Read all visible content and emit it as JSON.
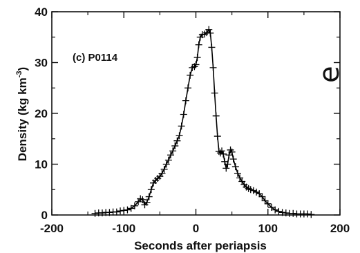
{
  "chart_data": {
    "type": "line",
    "title": "",
    "xlabel": "Seconds after periapsis",
    "ylabel": "Density (kg km",
    "ylabel_superscript": "-3",
    "ylabel_close": ")",
    "annotation": "(c) P0114",
    "edge_glyph": "e",
    "xlim": [
      -200,
      200
    ],
    "ylim": [
      0,
      40
    ],
    "x_ticks": [
      -200,
      -100,
      0,
      100,
      200
    ],
    "y_ticks": [
      0,
      10,
      20,
      30,
      40
    ],
    "grid": false,
    "legend": "none",
    "series": [
      {
        "marker": "plus",
        "color": "#000000",
        "points": [
          [
            -140,
            0.3
          ],
          [
            -135,
            0.4
          ],
          [
            -130,
            0.4
          ],
          [
            -125,
            0.5
          ],
          [
            -120,
            0.5
          ],
          [
            -115,
            0.6
          ],
          [
            -110,
            0.6
          ],
          [
            -105,
            0.8
          ],
          [
            -100,
            0.9
          ],
          [
            -95,
            1.0
          ],
          [
            -90,
            1.3
          ],
          [
            -85,
            1.8
          ],
          [
            -80,
            2.6
          ],
          [
            -77,
            3.2
          ],
          [
            -74,
            3.0
          ],
          [
            -71,
            2.0
          ],
          [
            -68,
            2.5
          ],
          [
            -65,
            3.6
          ],
          [
            -62,
            5.0
          ],
          [
            -59,
            6.3
          ],
          [
            -56,
            6.8
          ],
          [
            -53,
            7.2
          ],
          [
            -50,
            7.6
          ],
          [
            -47,
            8.2
          ],
          [
            -44,
            9.0
          ],
          [
            -41,
            10.0
          ],
          [
            -38,
            10.8
          ],
          [
            -35,
            11.8
          ],
          [
            -32,
            12.6
          ],
          [
            -29,
            13.6
          ],
          [
            -26,
            14.6
          ],
          [
            -23,
            15.6
          ],
          [
            -20,
            17.5
          ],
          [
            -17,
            19.8
          ],
          [
            -14,
            22.5
          ],
          [
            -11,
            25.0
          ],
          [
            -8,
            27.5
          ],
          [
            -5,
            29.0
          ],
          [
            -2,
            29.2
          ],
          [
            0,
            29.6
          ],
          [
            2,
            31.0
          ],
          [
            4,
            33.5
          ],
          [
            6,
            35.0
          ],
          [
            9,
            35.5
          ],
          [
            12,
            35.6
          ],
          [
            15,
            35.9
          ],
          [
            18,
            36.5
          ],
          [
            20,
            35.8
          ],
          [
            22,
            33.0
          ],
          [
            24,
            29.0
          ],
          [
            26,
            24.0
          ],
          [
            28,
            19.5
          ],
          [
            30,
            15.5
          ],
          [
            32,
            12.5
          ],
          [
            34,
            12.2
          ],
          [
            36,
            12.6
          ],
          [
            38,
            12.0
          ],
          [
            40,
            10.5
          ],
          [
            42,
            9.2
          ],
          [
            44,
            10.0
          ],
          [
            46,
            11.8
          ],
          [
            48,
            12.8
          ],
          [
            50,
            12.4
          ],
          [
            52,
            11.0
          ],
          [
            55,
            9.5
          ],
          [
            58,
            8.2
          ],
          [
            61,
            7.3
          ],
          [
            64,
            6.6
          ],
          [
            67,
            6.0
          ],
          [
            70,
            5.5
          ],
          [
            73,
            5.2
          ],
          [
            76,
            5.0
          ],
          [
            80,
            4.8
          ],
          [
            84,
            4.5
          ],
          [
            88,
            4.2
          ],
          [
            92,
            3.6
          ],
          [
            96,
            2.8
          ],
          [
            100,
            2.2
          ],
          [
            105,
            1.5
          ],
          [
            110,
            1.0
          ],
          [
            115,
            0.7
          ],
          [
            120,
            0.5
          ],
          [
            125,
            0.4
          ],
          [
            130,
            0.3
          ],
          [
            135,
            0.3
          ],
          [
            140,
            0.2
          ],
          [
            145,
            0.2
          ],
          [
            150,
            0.2
          ],
          [
            155,
            0.2
          ],
          [
            160,
            0.1
          ]
        ]
      }
    ]
  }
}
